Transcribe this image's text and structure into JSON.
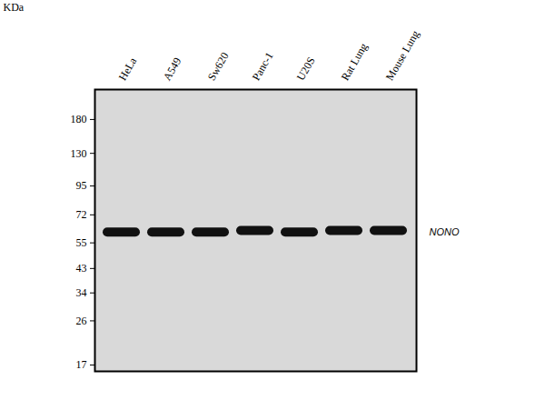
{
  "chart_data": {
    "type": "blot",
    "y_label": "KDa",
    "categories": [
      "HeLa",
      "A549",
      "Sw620",
      "Panc-1",
      "U20S",
      "Rat Lung",
      "Mouse Lung"
    ],
    "values": [
      61,
      61,
      61,
      62,
      61,
      62,
      62
    ],
    "ylim": [
      16,
      240
    ],
    "yticks": [
      180,
      130,
      95,
      72,
      55,
      43,
      34,
      26,
      17
    ],
    "log": "y",
    "grid": false,
    "color": "#111111",
    "annotations": [
      {
        "text": "NONO",
        "y": 61
      }
    ]
  }
}
